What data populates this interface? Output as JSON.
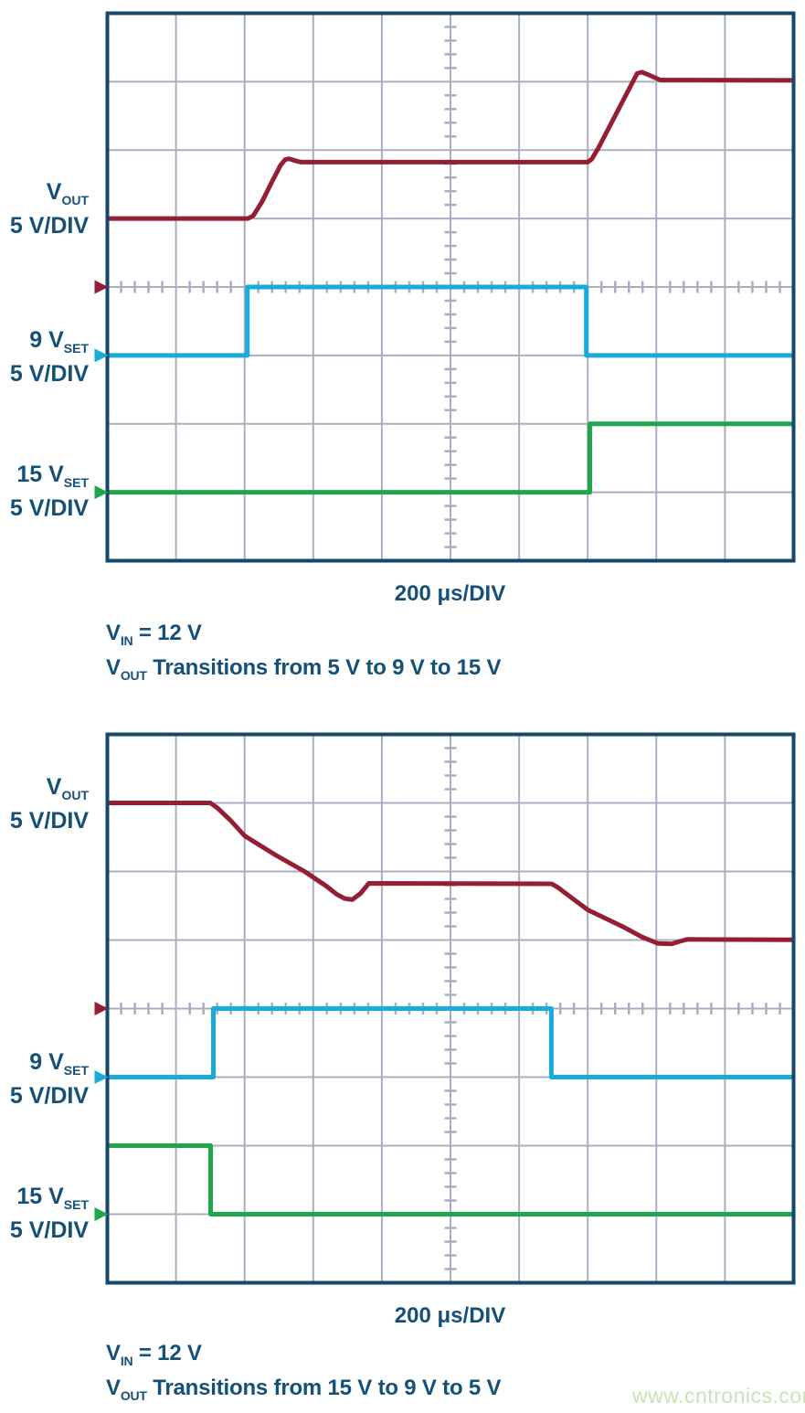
{
  "watermark": {
    "text": "www.cntronics.com",
    "color": "#cbe2b4"
  },
  "colors": {
    "border": "#16476b",
    "grid": "#a9aec2",
    "text": "#155078",
    "vout": "#941e33",
    "set9": "#19abda",
    "set15": "#1ea64c"
  },
  "charts": [
    {
      "channel_labels": [
        {
          "pre": "V",
          "sub": "OUT",
          "line2": "5 V/DIV"
        },
        {
          "pre": "9 V",
          "sub": "SET",
          "line2": "5 V/DIV"
        },
        {
          "pre": "15 V",
          "sub": "SET",
          "line2": "5 V/DIV"
        }
      ],
      "captions": [
        {
          "pre": "V",
          "sub": "IN",
          "post": " = 12 V"
        },
        {
          "pre": "V",
          "sub": "OUT",
          "post": " Transitions from 5 V to 9 V to 15 V"
        }
      ],
      "chart_data": {
        "type": "line",
        "x_label": "200 μs/DIV",
        "x_unit": "μs",
        "x_per_div": 200,
        "x_range": [
          0,
          2000
        ],
        "volts_per_div": 5,
        "x_divisions": 10,
        "y_divisions": 8,
        "grid": true,
        "traces": [
          {
            "id": "vout",
            "name": "VOUT",
            "color": "#941e33",
            "zero_div": 4,
            "points": [
              [
                0,
                5
              ],
              [
                410,
                5
              ],
              [
                425,
                5.2
              ],
              [
                450,
                6.2
              ],
              [
                480,
                7.7
              ],
              [
                505,
                8.9
              ],
              [
                518,
                9.3
              ],
              [
                530,
                9.37
              ],
              [
                548,
                9.22
              ],
              [
                565,
                9.12
              ],
              [
                1400,
                9.12
              ],
              [
                1412,
                9.35
              ],
              [
                1432,
                10.2
              ],
              [
                1544,
                15.6
              ],
              [
                1558,
                15.7
              ],
              [
                1582,
                15.45
              ],
              [
                1612,
                15.12
              ],
              [
                2000,
                15.1
              ]
            ]
          },
          {
            "id": "set9",
            "name": "9 VSET",
            "color": "#19abda",
            "zero_div": 5,
            "points": [
              [
                0,
                0
              ],
              [
                408,
                0
              ],
              [
                408,
                5
              ],
              [
                1396,
                5
              ],
              [
                1396,
                0
              ],
              [
                2000,
                0
              ]
            ]
          },
          {
            "id": "set15",
            "name": "15 VSET",
            "color": "#1ea64c",
            "zero_div": 7,
            "points": [
              [
                0,
                0
              ],
              [
                1406,
                0
              ],
              [
                1406,
                5
              ],
              [
                2000,
                5
              ]
            ]
          }
        ]
      }
    },
    {
      "channel_labels": [
        {
          "pre": "V",
          "sub": "OUT",
          "line2": "5 V/DIV"
        },
        {
          "pre": "9 V",
          "sub": "SET",
          "line2": "5 V/DIV"
        },
        {
          "pre": "15 V",
          "sub": "SET",
          "line2": "5 V/DIV"
        }
      ],
      "captions": [
        {
          "pre": "V",
          "sub": "IN",
          "post": " = 12 V"
        },
        {
          "pre": "V",
          "sub": "OUT",
          "post": " Transitions from 15 V to 9 V to 5 V"
        }
      ],
      "chart_data": {
        "type": "line",
        "x_label": "200 μs/DIV",
        "x_unit": "μs",
        "x_per_div": 200,
        "x_range": [
          0,
          2000
        ],
        "volts_per_div": 5,
        "x_divisions": 10,
        "y_divisions": 8,
        "grid": true,
        "traces": [
          {
            "id": "vout",
            "name": "VOUT",
            "color": "#941e33",
            "zero_div": 4,
            "points": [
              [
                0,
                15
              ],
              [
                300,
                15
              ],
              [
                320,
                14.65
              ],
              [
                360,
                13.7
              ],
              [
                400,
                12.6
              ],
              [
                490,
                11.2
              ],
              [
                575,
                10
              ],
              [
                640,
                8.9
              ],
              [
                668,
                8.35
              ],
              [
                692,
                8.02
              ],
              [
                714,
                7.95
              ],
              [
                738,
                8.4
              ],
              [
                762,
                9.13
              ],
              [
                1295,
                9.1
              ],
              [
                1312,
                8.85
              ],
              [
                1400,
                7.2
              ],
              [
                1500,
                6
              ],
              [
                1560,
                5.2
              ],
              [
                1587,
                4.93
              ],
              [
                1605,
                4.75
              ],
              [
                1645,
                4.72
              ],
              [
                1668,
                4.9
              ],
              [
                1690,
                5.05
              ],
              [
                2000,
                5.02
              ]
            ]
          },
          {
            "id": "set9",
            "name": "9 VSET",
            "color": "#19abda",
            "zero_div": 5,
            "points": [
              [
                0,
                0
              ],
              [
                309,
                0
              ],
              [
                309,
                5
              ],
              [
                1294,
                5
              ],
              [
                1294,
                0
              ],
              [
                2000,
                0
              ]
            ]
          },
          {
            "id": "set15",
            "name": "15 VSET",
            "color": "#1ea64c",
            "zero_div": 7,
            "points": [
              [
                0,
                5
              ],
              [
                301,
                5
              ],
              [
                301,
                0
              ],
              [
                2000,
                0
              ]
            ]
          }
        ]
      }
    }
  ]
}
